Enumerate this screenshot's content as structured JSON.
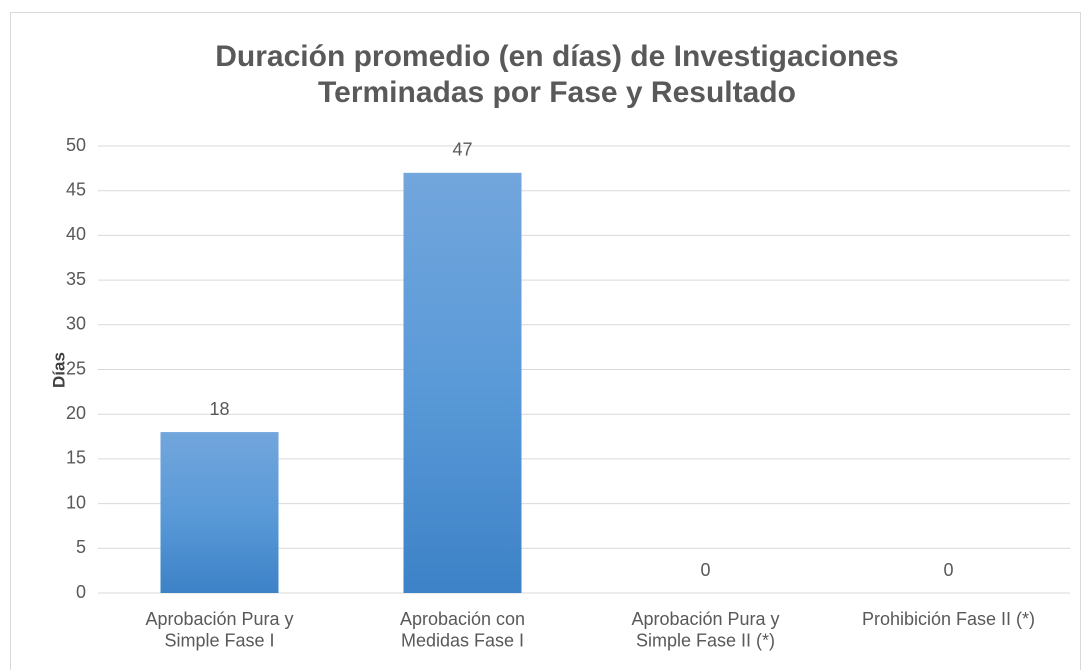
{
  "chart_data": {
    "type": "bar",
    "title": "Duración promedio (en días) de Investigaciones\nTerminadas por Fase y Resultado",
    "y_label": "Días",
    "categories": [
      "Aprobación Pura y\nSimple Fase I",
      "Aprobación con\nMedidas Fase I",
      "Aprobación Pura y\nSimple Fase II (*)",
      "Prohibición Fase II (*)"
    ],
    "values": [
      18,
      47,
      0,
      0
    ],
    "color": "#5b9bd5",
    "ylim": [
      0,
      50
    ],
    "yticks": [
      0,
      5,
      10,
      15,
      20,
      25,
      30,
      35,
      40,
      45,
      50
    ],
    "grid": true
  }
}
